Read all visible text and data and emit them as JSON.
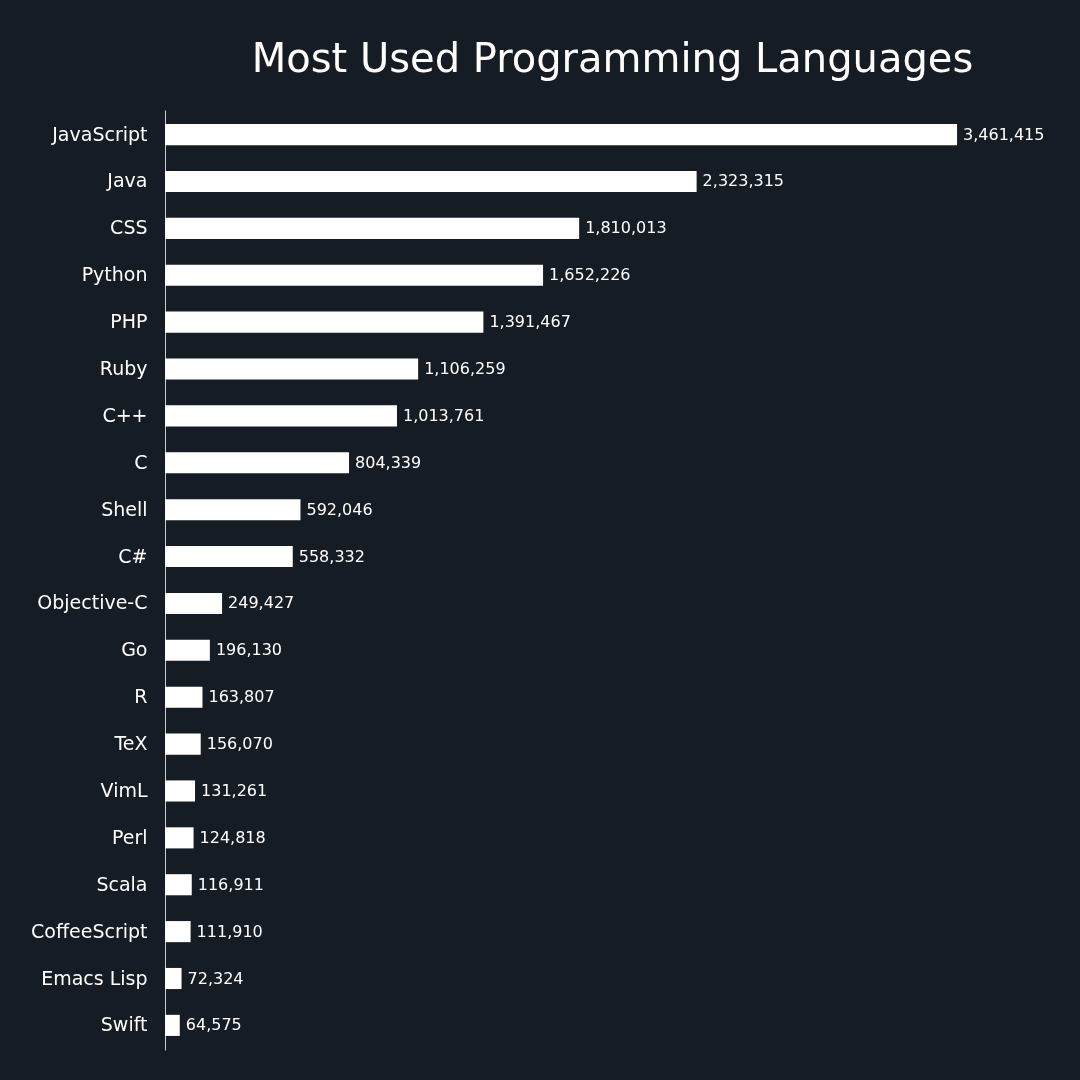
{
  "chart_data": {
    "type": "bar",
    "orientation": "horizontal",
    "title": "Most Used Programming Languages",
    "categories": [
      "JavaScript",
      "Java",
      "CSS",
      "Python",
      "PHP",
      "Ruby",
      "C++",
      "C",
      "Shell",
      "C#",
      "Objective-C",
      "Go",
      "R",
      "TeX",
      "VimL",
      "Perl",
      "Scala",
      "CoffeeScript",
      "Emacs Lisp",
      "Swift"
    ],
    "values": [
      3461415,
      2323315,
      1810013,
      1652226,
      1391467,
      1106259,
      1013761,
      804339,
      592046,
      558332,
      249427,
      196130,
      163807,
      156070,
      131261,
      124818,
      116911,
      111910,
      72324,
      64575
    ],
    "value_labels": [
      "3,461,415",
      "2,323,315",
      "1,810,013",
      "1,652,226",
      "1,391,467",
      "1,106,259",
      "1,013,761",
      "804,339",
      "592,046",
      "558,332",
      "249,427",
      "196,130",
      "163,807",
      "156,070",
      "131,261",
      "124,818",
      "116,911",
      "111,910",
      "72,324",
      "64,575"
    ],
    "color": "#ffffff",
    "grid": false
  }
}
